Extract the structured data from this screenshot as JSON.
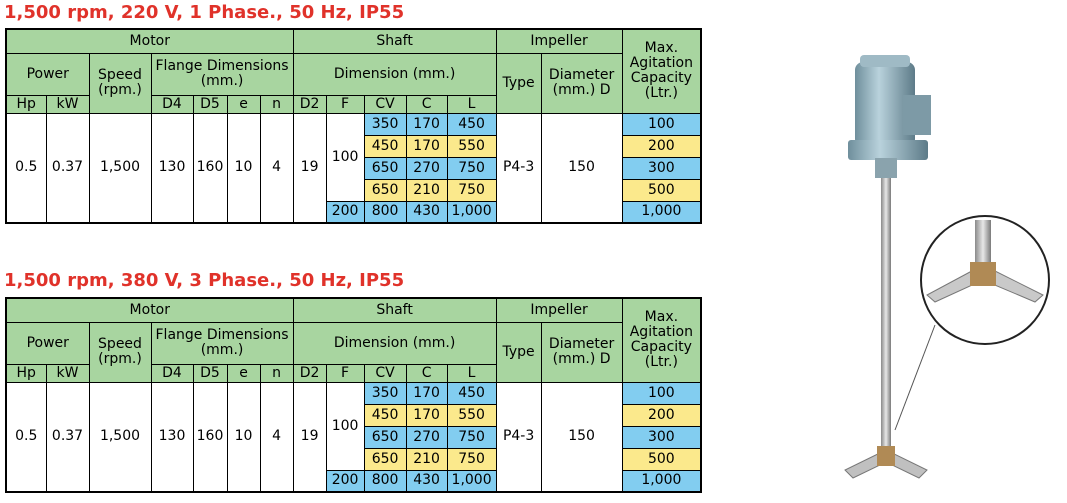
{
  "tables": [
    {
      "title": "1,500 rpm, 220 V, 1 Phase., 50 Hz, IP55",
      "header": {
        "motor": "Motor",
        "shaft": "Shaft",
        "impeller": "Impeller",
        "capacity": "Max. Agitation Capacity (Ltr.)",
        "power": "Power",
        "speed": "Speed (rpm.)",
        "flange": "Flange Dimensions (mm.)",
        "dimension": "Dimension (mm.)",
        "type": "Type",
        "diameter": "Diameter (mm.) D",
        "columns": [
          "Hp",
          "kW",
          "D4",
          "D5",
          "e",
          "n",
          "D2",
          "F",
          "CV",
          "C",
          "L"
        ]
      },
      "common": {
        "hp": "0.5",
        "kw": "0.37",
        "speed": "1,500",
        "d4": "130",
        "d5": "160",
        "e": "10",
        "n": "4",
        "d2": "19",
        "f": "100",
        "type": "P4-3",
        "diameter": "150"
      },
      "rows": [
        {
          "cv": "350",
          "c": "170",
          "l": "450",
          "capacity": "100"
        },
        {
          "cv": "450",
          "c": "170",
          "l": "550",
          "capacity": "200"
        },
        {
          "cv": "650",
          "c": "270",
          "l": "750",
          "capacity": "300"
        },
        {
          "cv": "650",
          "c": "210",
          "l": "750",
          "capacity": "500"
        },
        {
          "f": "200",
          "cv": "800",
          "c": "430",
          "l": "1,000",
          "capacity": "1,000"
        }
      ]
    },
    {
      "title": "1,500 rpm, 380 V, 3 Phase., 50 Hz, IP55",
      "header": {
        "motor": "Motor",
        "shaft": "Shaft",
        "impeller": "Impeller",
        "capacity": "Max. Agitation Capacity (Ltr.)",
        "power": "Power",
        "speed": "Speed (rpm.)",
        "flange": "Flange Dimensions (mm.)",
        "dimension": "Dimension (mm.)",
        "type": "Type",
        "diameter": "Diameter (mm.) D",
        "columns": [
          "Hp",
          "kW",
          "D4",
          "D5",
          "e",
          "n",
          "D2",
          "F",
          "CV",
          "C",
          "L"
        ]
      },
      "common": {
        "hp": "0.5",
        "kw": "0.37",
        "speed": "1,500",
        "d4": "130",
        "d5": "160",
        "e": "10",
        "n": "4",
        "d2": "19",
        "f": "100",
        "type": "P4-3",
        "diameter": "150"
      },
      "rows": [
        {
          "cv": "350",
          "c": "170",
          "l": "450",
          "capacity": "100"
        },
        {
          "cv": "450",
          "c": "170",
          "l": "550",
          "capacity": "200"
        },
        {
          "cv": "650",
          "c": "270",
          "l": "750",
          "capacity": "300"
        },
        {
          "cv": "650",
          "c": "210",
          "l": "750",
          "capacity": "500"
        },
        {
          "f": "200",
          "cv": "800",
          "c": "430",
          "l": "1,000",
          "capacity": "1,000"
        }
      ]
    }
  ]
}
